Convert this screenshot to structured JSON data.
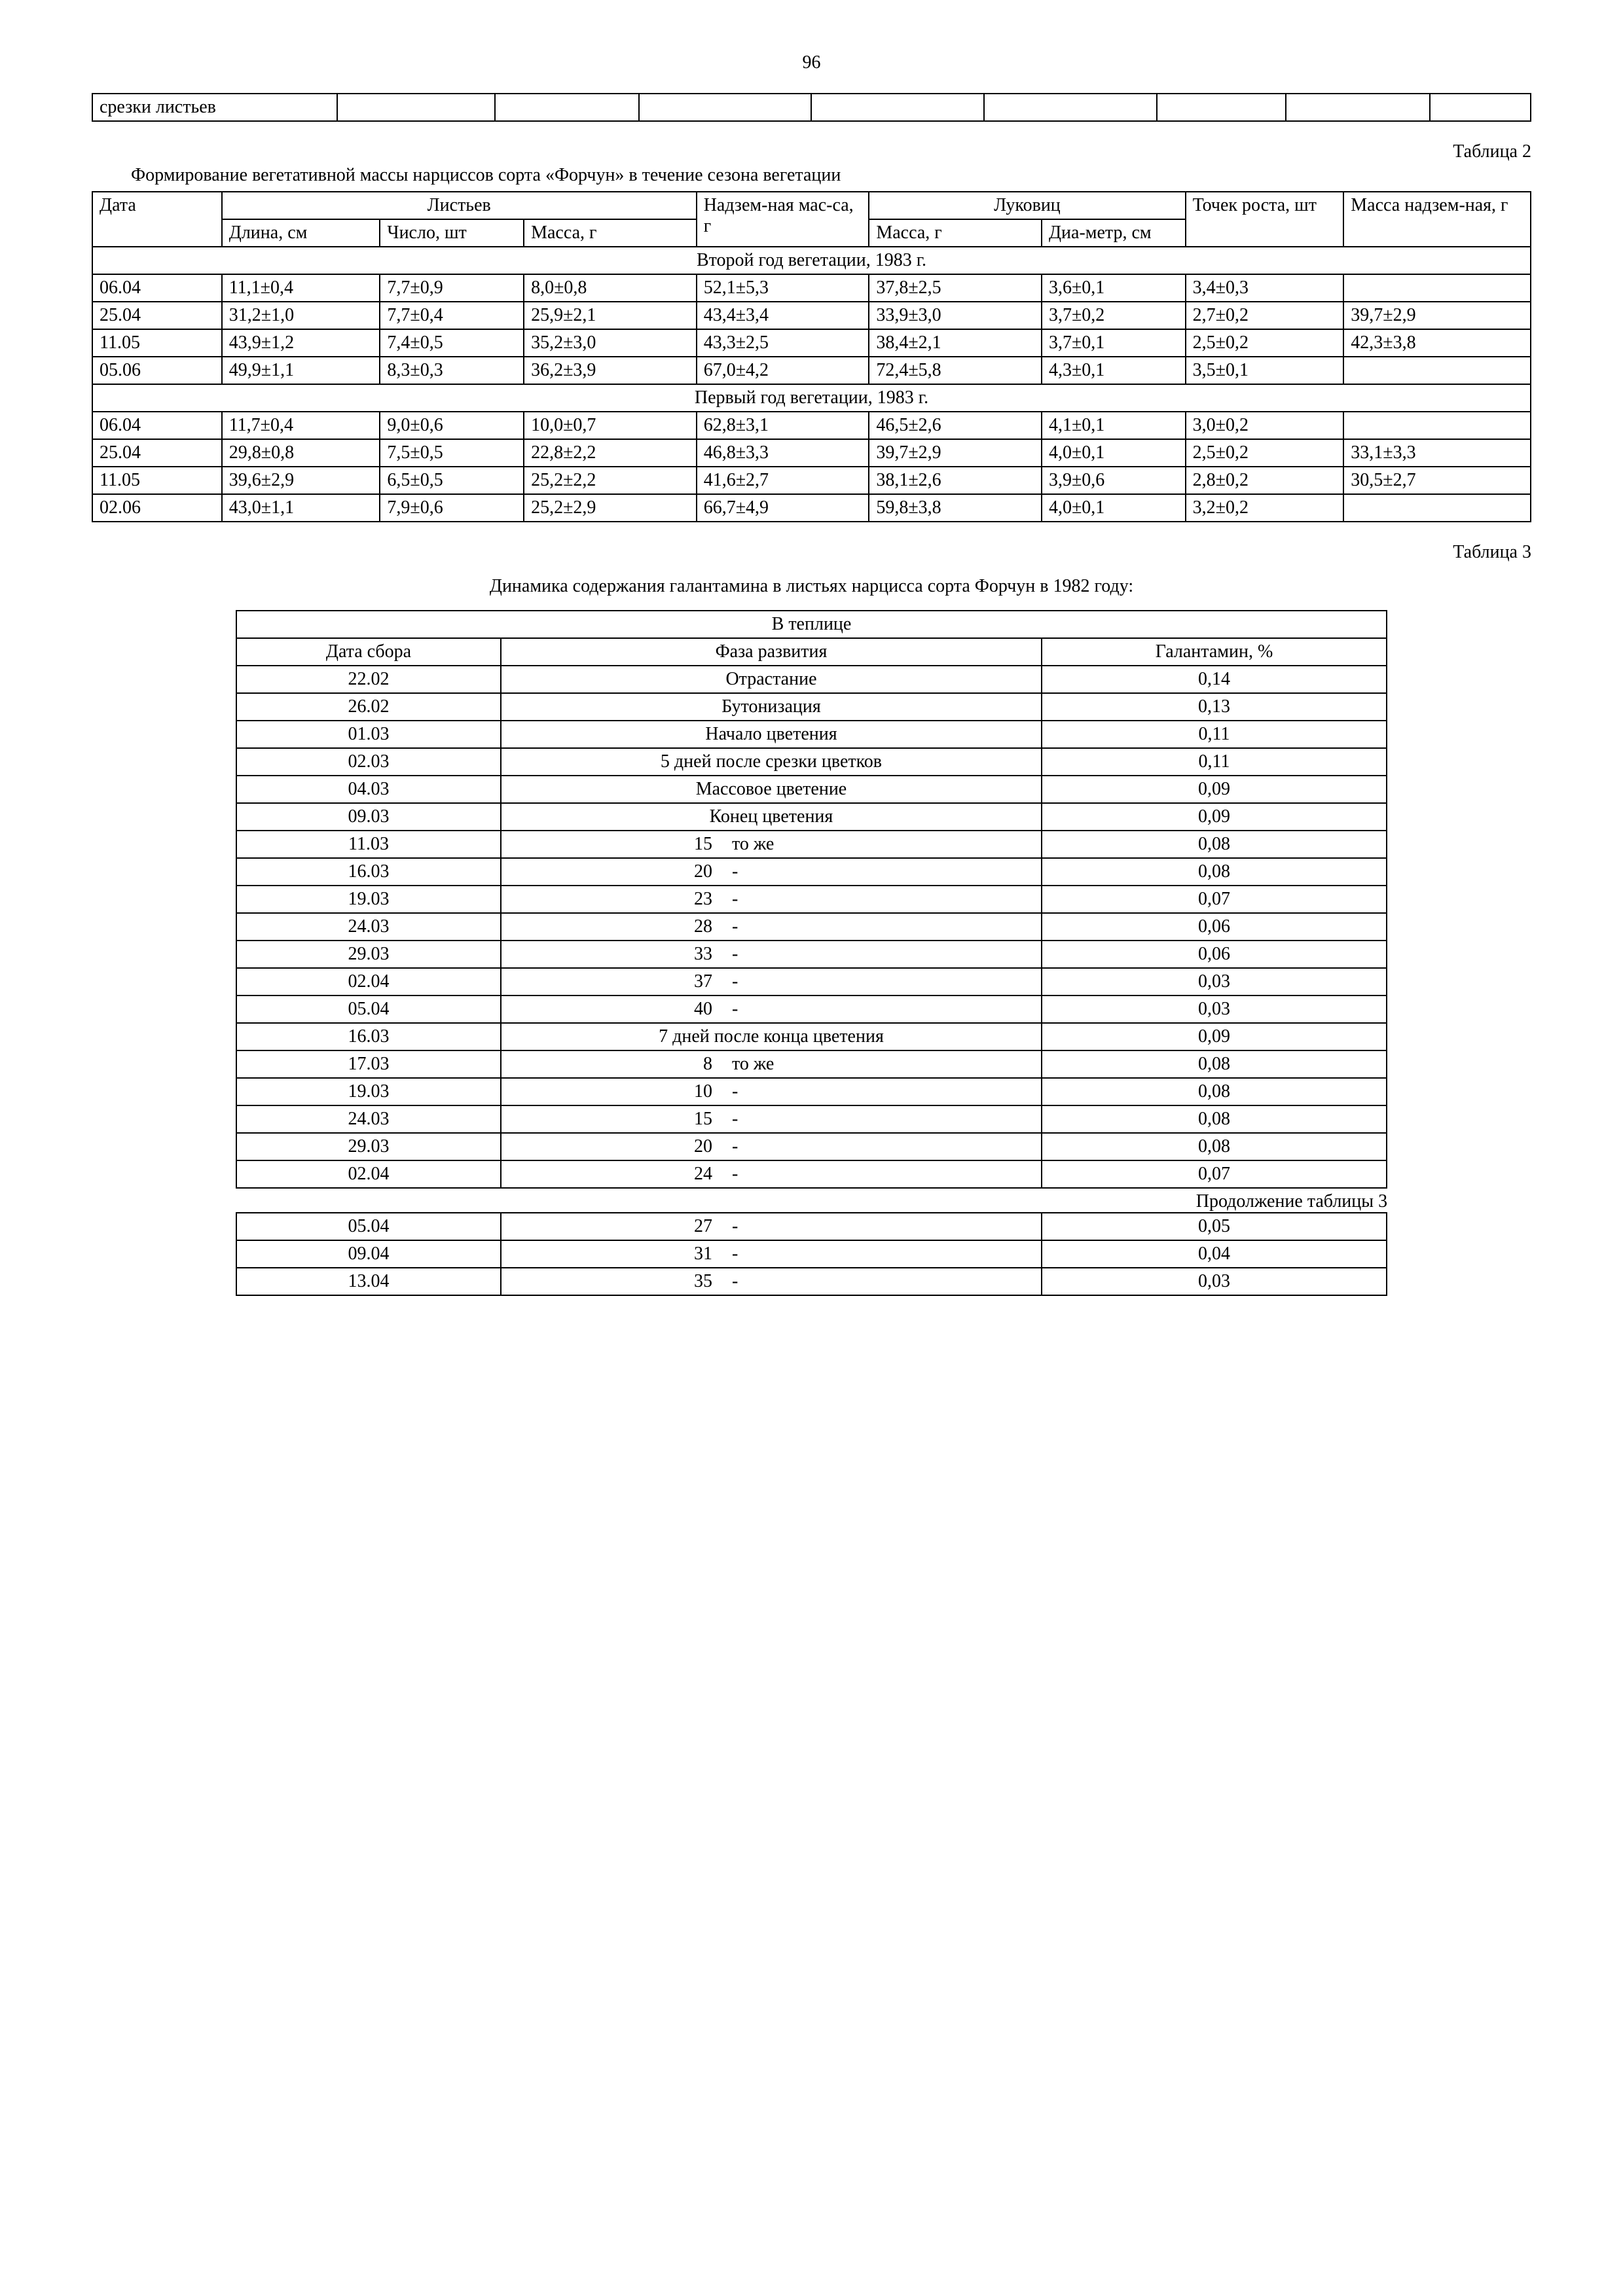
{
  "page_number": "96",
  "fragment_table": {
    "first_cell": "срезки листьев"
  },
  "table2": {
    "label": "Таблица 2",
    "caption": "Формирование вегетативной массы нарциссов сорта «Форчун» в течение сезона  вегетации",
    "header": {
      "date": "Дата",
      "leaves": "Листьев",
      "above_mass": "Надзем-ная мас-са, г",
      "bulbs": "Луковиц",
      "growth_points": "Точек роста, шт",
      "above_mass2": "Масса надзем-ная, г",
      "length": "Длина, см",
      "count": "Число, шт",
      "mass": "Масса, г",
      "bulb_mass": "Масса, г",
      "bulb_diam": "Диа-метр, см"
    },
    "section1": "Второй год вегетации, 1983 г.",
    "rows1": [
      [
        "06.04",
        "11,1±0,4",
        "7,7±0,9",
        "8,0±0,8",
        "52,1±5,3",
        "37,8±2,5",
        "3,6±0,1",
        "3,4±0,3",
        ""
      ],
      [
        "25.04",
        "31,2±1,0",
        "7,7±0,4",
        "25,9±2,1",
        "43,4±3,4",
        "33,9±3,0",
        "3,7±0,2",
        "2,7±0,2",
        "39,7±2,9"
      ],
      [
        "11.05",
        "43,9±1,2",
        "7,4±0,5",
        "35,2±3,0",
        "43,3±2,5",
        "38,4±2,1",
        "3,7±0,1",
        "2,5±0,2",
        "42,3±3,8"
      ],
      [
        "05.06",
        "49,9±1,1",
        "8,3±0,3",
        "36,2±3,9",
        "67,0±4,2",
        "72,4±5,8",
        "4,3±0,1",
        "3,5±0,1",
        ""
      ]
    ],
    "section2": "Первый год вегетации, 1983 г.",
    "rows2": [
      [
        "06.04",
        "11,7±0,4",
        "9,0±0,6",
        "10,0±0,7",
        "62,8±3,1",
        "46,5±2,6",
        "4,1±0,1",
        "3,0±0,2",
        ""
      ],
      [
        "25.04",
        "29,8±0,8",
        "7,5±0,5",
        "22,8±2,2",
        "46,8±3,3",
        "39,7±2,9",
        "4,0±0,1",
        "2,5±0,2",
        "33,1±3,3"
      ],
      [
        "11.05",
        "39,6±2,9",
        "6,5±0,5",
        "25,2±2,2",
        "41,6±2,7",
        "38,1±2,6",
        "3,9±0,6",
        "2,8±0,2",
        "30,5±2,7"
      ],
      [
        "02.06",
        "43,0±1,1",
        "7,9±0,6",
        "25,2±2,9",
        "66,7±4,9",
        "59,8±3,8",
        "4,0±0,1",
        "3,2±0,2",
        ""
      ]
    ]
  },
  "table3": {
    "label": "Таблица 3",
    "caption": "Динамика содержания галантамина в листьях нарцисса сорта Форчун в 1982 году:",
    "title_row": "В теплице",
    "header": {
      "date": "Дата сбора",
      "phase": "Фаза развития",
      "gal": "Галантамин, %"
    },
    "rows": [
      {
        "date": "22.02",
        "phase": "Отрастание",
        "gal": "0,14"
      },
      {
        "date": "26.02",
        "phase": "Бутонизация",
        "gal": "0,13"
      },
      {
        "date": "01.03",
        "phase": "Начало цветения",
        "gal": "0,11"
      },
      {
        "date": "02.03",
        "phase": "5 дней после срезки цветков",
        "gal": "0,11"
      },
      {
        "date": "04.03",
        "phase": "Массовое цветение",
        "gal": "0,09"
      },
      {
        "date": "09.03",
        "phase": "Конец цветения",
        "gal": "0,09"
      },
      {
        "date": "11.03",
        "num": "15",
        "suffix": "то же",
        "gal": "0,08"
      },
      {
        "date": "16.03",
        "num": "20",
        "suffix": "-",
        "gal": "0,08"
      },
      {
        "date": "19.03",
        "num": "23",
        "suffix": "-",
        "gal": "0,07"
      },
      {
        "date": "24.03",
        "num": "28",
        "suffix": "-",
        "gal": "0,06"
      },
      {
        "date": "29.03",
        "num": "33",
        "suffix": "-",
        "gal": "0,06"
      },
      {
        "date": "02.04",
        "num": "37",
        "suffix": "-",
        "gal": "0,03"
      },
      {
        "date": "05.04",
        "num": "40",
        "suffix": "-",
        "gal": "0,03"
      },
      {
        "date": "16.03",
        "phase": "7 дней после конца цветения",
        "gal": "0,09"
      },
      {
        "date": "17.03",
        "num": "8",
        "suffix": "то же",
        "gal": "0,08"
      },
      {
        "date": "19.03",
        "num": "10",
        "suffix": "-",
        "gal": "0,08"
      },
      {
        "date": "24.03",
        "num": "15",
        "suffix": "-",
        "gal": "0,08"
      },
      {
        "date": "29.03",
        "num": "20",
        "suffix": "-",
        "gal": "0,08"
      },
      {
        "date": "02.04",
        "num": "24",
        "suffix": "-",
        "gal": "0,07"
      }
    ],
    "continuation": "Продолжение таблицы 3",
    "rows_cont": [
      {
        "date": "05.04",
        "num": "27",
        "suffix": "-",
        "gal": "0,05"
      },
      {
        "date": "09.04",
        "num": "31",
        "suffix": "-",
        "gal": "0,04"
      },
      {
        "date": "13.04",
        "num": "35",
        "suffix": "-",
        "gal": "0,03"
      }
    ],
    "col_widths": {
      "date": "23%",
      "phase": "47%",
      "gal": "30%"
    }
  },
  "t2_col_widths": [
    "9%",
    "11%",
    "10%",
    "12%",
    "12%",
    "12%",
    "10%",
    "11%",
    "13%"
  ]
}
